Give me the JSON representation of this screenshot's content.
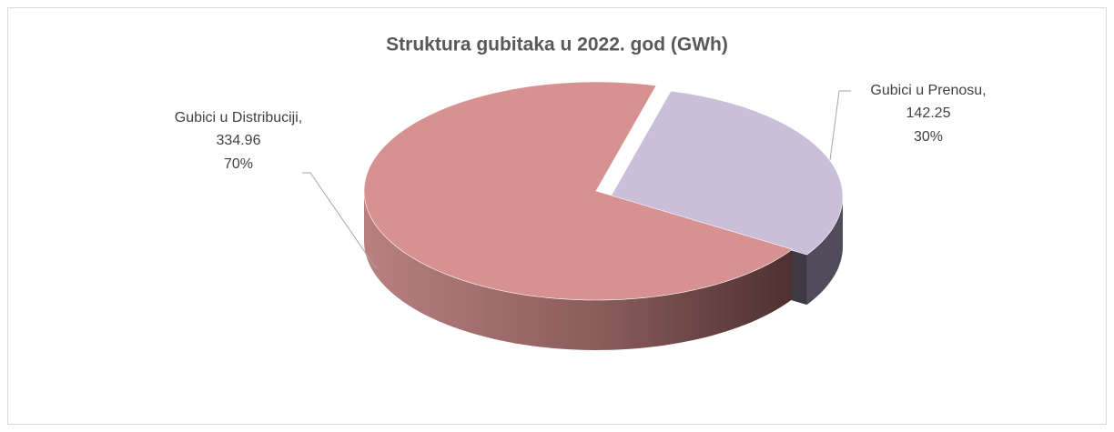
{
  "chart_data": {
    "type": "pie",
    "title": "Struktura gubitaka u 2022. god  (GWh)",
    "categories": [
      "Gubici u Distribuciji,",
      "Gubici u Prenosu,"
    ],
    "values": [
      334.96,
      142.25
    ],
    "percentages": [
      70,
      30
    ],
    "percentage_labels": [
      "70%",
      "30%"
    ],
    "colors": [
      "#d79191",
      "#c9bfd9"
    ]
  }
}
